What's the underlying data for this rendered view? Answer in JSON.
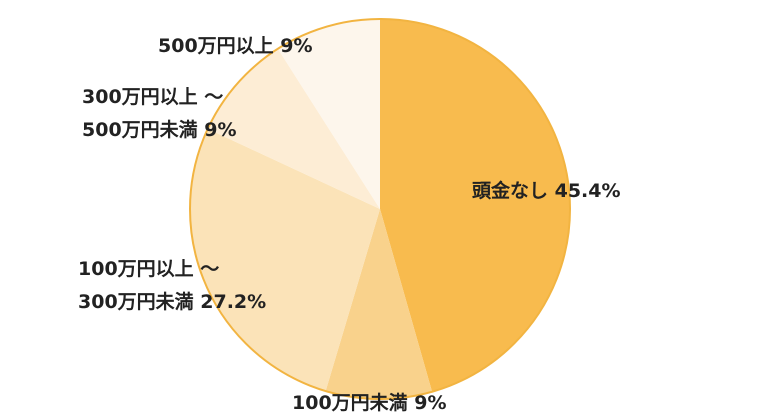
{
  "chart_data": {
    "type": "pie",
    "title": "",
    "start_angle_deg": 0,
    "direction": "clockwise",
    "outline_color": "#F2B441",
    "slices": [
      {
        "label_lines": [
          "頭金なし 45.4%"
        ],
        "value": 45.4,
        "color": "#F8BB4E"
      },
      {
        "label_lines": [
          "100万円未満 9%"
        ],
        "value": 9,
        "color": "#F9D28C"
      },
      {
        "label_lines": [
          "100万円以上 〜",
          "300万円未満 27.2%"
        ],
        "value": 27.2,
        "color": "#FBE3B8"
      },
      {
        "label_lines": [
          "300万円以上 〜",
          "500万円未満 9%"
        ],
        "value": 9,
        "color": "#FDEDD5"
      },
      {
        "label_lines": [
          "500万円以上 9%"
        ],
        "value": 9,
        "color": "#FDF6EC"
      }
    ]
  }
}
